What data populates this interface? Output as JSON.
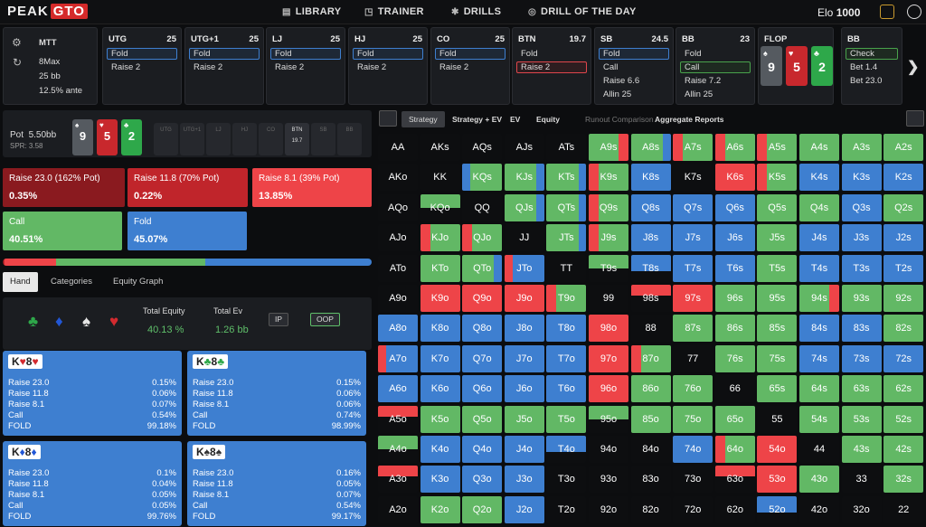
{
  "app": {
    "logo_a": "PEAK",
    "logo_b": "GTO"
  },
  "nav": {
    "items": [
      {
        "label": "LIBRARY",
        "icon": "library-icon"
      },
      {
        "label": "TRAINER",
        "icon": "gamepad-icon"
      },
      {
        "label": "DRILLS",
        "icon": "drills-icon"
      },
      {
        "label": "DRILL OF THE DAY",
        "icon": "target-icon"
      }
    ],
    "elo_label": "Elo",
    "elo_value": "1000"
  },
  "settings": {
    "game": "MTT",
    "max": "8Max",
    "bb": "25 bb",
    "ante": "12.5% ante"
  },
  "positions": [
    {
      "name": "UTG",
      "stack": "25",
      "actions": [
        {
          "label": "Fold",
          "sel": "blue"
        },
        {
          "label": "Raise 2",
          "sel": ""
        }
      ]
    },
    {
      "name": "UTG+1",
      "stack": "25",
      "actions": [
        {
          "label": "Fold",
          "sel": "blue"
        },
        {
          "label": "Raise 2",
          "sel": ""
        }
      ]
    },
    {
      "name": "LJ",
      "stack": "25",
      "actions": [
        {
          "label": "Fold",
          "sel": "blue"
        },
        {
          "label": "Raise 2",
          "sel": ""
        }
      ]
    },
    {
      "name": "HJ",
      "stack": "25",
      "actions": [
        {
          "label": "Fold",
          "sel": "blue"
        },
        {
          "label": "Raise 2",
          "sel": ""
        }
      ]
    },
    {
      "name": "CO",
      "stack": "25",
      "actions": [
        {
          "label": "Fold",
          "sel": "blue"
        },
        {
          "label": "Raise 2",
          "sel": ""
        }
      ]
    },
    {
      "name": "BTN",
      "stack": "19.7",
      "actions": [
        {
          "label": "Fold",
          "sel": ""
        },
        {
          "label": "Raise 2",
          "sel": "red"
        }
      ]
    },
    {
      "name": "SB",
      "stack": "24.5",
      "actions": [
        {
          "label": "Fold",
          "sel": "blue"
        },
        {
          "label": "Call",
          "sel": ""
        },
        {
          "label": "Raise 6.6",
          "sel": ""
        },
        {
          "label": "Allin 25",
          "sel": ""
        }
      ]
    },
    {
      "name": "BB",
      "stack": "23",
      "actions": [
        {
          "label": "Fold",
          "sel": ""
        },
        {
          "label": "Call",
          "sel": "green"
        },
        {
          "label": "Raise 7.2",
          "sel": ""
        },
        {
          "label": "Allin 25",
          "sel": ""
        }
      ]
    },
    {
      "name": "BB",
      "stack": "",
      "actions": [
        {
          "label": "Check",
          "sel": "green"
        },
        {
          "label": "Bet 1.4",
          "sel": ""
        },
        {
          "label": "Bet 23.0",
          "sel": ""
        }
      ]
    }
  ],
  "flop": {
    "label": "FLOP",
    "cards": [
      {
        "rank": "9",
        "suit": "♠",
        "color": "#555a60"
      },
      {
        "rank": "5",
        "suit": "♥",
        "color": "#c8282d"
      },
      {
        "rank": "2",
        "suit": "♣",
        "color": "#2ea84a"
      }
    ]
  },
  "pot": {
    "label": "Pot",
    "value": "5.50bb",
    "spr_label": "SPR:",
    "spr_value": "3.58",
    "seats": [
      {
        "name": "UTG",
        "stack": "",
        "active": false
      },
      {
        "name": "UTG+1",
        "stack": "",
        "active": false
      },
      {
        "name": "LJ",
        "stack": "",
        "active": false
      },
      {
        "name": "HJ",
        "stack": "",
        "active": false
      },
      {
        "name": "CO",
        "stack": "",
        "active": false
      },
      {
        "name": "BTN",
        "stack": "19.7",
        "active": true
      },
      {
        "name": "SB",
        "stack": "",
        "active": false
      },
      {
        "name": "BB",
        "stack": "",
        "active": false
      }
    ]
  },
  "actions": [
    {
      "label": "Raise 23.0 (162% Pot)",
      "freq": "0.35%",
      "color": "#8a1a1f"
    },
    {
      "label": "Raise 11.8 (70% Pot)",
      "freq": "0.22%",
      "color": "#c0252b"
    },
    {
      "label": "Raise 8.1 (39% Pot)",
      "freq": "13.85%",
      "color": "#ee4448"
    },
    {
      "label": "Call",
      "freq": "40.51%",
      "color": "#62b865"
    },
    {
      "label": "Fold",
      "freq": "45.07%",
      "color": "#3e7fd0"
    }
  ],
  "freq_values": [
    0.0035,
    0.0022,
    0.1385,
    0.4051,
    0.4507
  ],
  "hand_tabs": [
    "Hand",
    "Categories",
    "Equity Graph"
  ],
  "equity": {
    "suits": [
      {
        "symbol": "♣",
        "color": "#2ea84a"
      },
      {
        "symbol": "♦",
        "color": "#2257d6"
      },
      {
        "symbol": "♠",
        "color": "#e6e6e6"
      },
      {
        "symbol": "♥",
        "color": "#d32a2f"
      }
    ],
    "total_equity_label": "Total Equity",
    "total_equity": "40.13 %",
    "total_ev_label": "Total Ev",
    "total_ev": "1.26 bb",
    "ip": "IP",
    "oop": "OOP"
  },
  "combos": [
    {
      "r1": "K",
      "s1": "♥",
      "c1": "#d32a2f",
      "r2": "8",
      "s2": "♥",
      "c2": "#d32a2f",
      "rows": [
        {
          "k": "Raise 23.0",
          "v": "0.15%"
        },
        {
          "k": "Raise 11.8",
          "v": "0.06%"
        },
        {
          "k": "Raise 8.1",
          "v": "0.07%"
        },
        {
          "k": "Call",
          "v": "0.54%"
        },
        {
          "k": "FOLD",
          "v": "99.18%"
        }
      ]
    },
    {
      "r1": "K",
      "s1": "♣",
      "c1": "#2ea84a",
      "r2": "8",
      "s2": "♣",
      "c2": "#2ea84a",
      "rows": [
        {
          "k": "Raise 23.0",
          "v": "0.15%"
        },
        {
          "k": "Raise 11.8",
          "v": "0.06%"
        },
        {
          "k": "Raise 8.1",
          "v": "0.06%"
        },
        {
          "k": "Call",
          "v": "0.74%"
        },
        {
          "k": "FOLD",
          "v": "98.99%"
        }
      ]
    },
    {
      "r1": "K",
      "s1": "♦",
      "c1": "#2257d6",
      "r2": "8",
      "s2": "♦",
      "c2": "#2257d6",
      "rows": [
        {
          "k": "Raise 23.0",
          "v": "0.1%"
        },
        {
          "k": "Raise 11.8",
          "v": "0.04%"
        },
        {
          "k": "Raise 8.1",
          "v": "0.05%"
        },
        {
          "k": "Call",
          "v": "0.05%"
        },
        {
          "k": "FOLD",
          "v": "99.76%"
        }
      ]
    },
    {
      "r1": "K",
      "s1": "♠",
      "c1": "#333333",
      "r2": "8",
      "s2": "♠",
      "c2": "#333333",
      "rows": [
        {
          "k": "Raise 23.0",
          "v": "0.16%"
        },
        {
          "k": "Raise 11.8",
          "v": "0.05%"
        },
        {
          "k": "Raise 8.1",
          "v": "0.07%"
        },
        {
          "k": "Call",
          "v": "0.54%"
        },
        {
          "k": "FOLD",
          "v": "99.17%"
        }
      ]
    }
  ],
  "strategy_tabs": [
    {
      "label": "Strategy",
      "style": "active"
    },
    {
      "label": "Strategy + EV",
      "style": ""
    },
    {
      "label": "EV",
      "style": ""
    },
    {
      "label": "Equity",
      "style": ""
    },
    {
      "label": "Runout Comparison",
      "style": "dim"
    },
    {
      "label": "Aggregate Reports",
      "style": ""
    }
  ],
  "colors": {
    "raise_big": "#b0262c",
    "raise_small": "#ee4448",
    "call": "#62b865",
    "fold": "#3e7fd0",
    "empty": "#0d0e10"
  },
  "grid": [
    [
      "AA",
      "",
      "AKs",
      "",
      "AQs",
      "",
      "AJs",
      "",
      "ATs",
      "",
      "A9s",
      "GR",
      "A8s",
      "GB",
      "A7s",
      "RG",
      "A6s",
      "RG",
      "A5s",
      "RG",
      "A4s",
      "G",
      "A3s",
      "G",
      "A2s",
      "G"
    ],
    [
      "AKo",
      "",
      "KK",
      "",
      "KQs",
      "BG",
      "KJs",
      "GB",
      "KTs",
      "GB",
      "K9s",
      "RG",
      "K8s",
      "B",
      "K7s",
      "",
      "K6s",
      "R",
      "K5s",
      "RG",
      "K4s",
      "B",
      "K3s",
      "B",
      "K2s",
      "B"
    ],
    [
      "AQo",
      "",
      "KQo",
      "g",
      "QQ",
      "",
      "QJs",
      "GB",
      "QTs",
      "GB",
      "Q9s",
      "RG",
      "Q8s",
      "B",
      "Q7s",
      "B",
      "Q6s",
      "B",
      "Q5s",
      "G",
      "Q4s",
      "G",
      "Q3s",
      "B",
      "Q2s",
      "G"
    ],
    [
      "AJo",
      "",
      "KJo",
      "RG",
      "QJo",
      "RG",
      "JJ",
      "",
      "JTs",
      "GB",
      "J9s",
      "RG",
      "J8s",
      "B",
      "J7s",
      "B",
      "J6s",
      "B",
      "J5s",
      "G",
      "J4s",
      "B",
      "J3s",
      "B",
      "J2s",
      "B"
    ],
    [
      "ATo",
      "",
      "KTo",
      "G",
      "QTo",
      "GB",
      "JTo",
      "RB",
      "TT",
      "",
      "T9s",
      "g",
      "T8s",
      "b",
      "T7s",
      "B",
      "T6s",
      "B",
      "T5s",
      "G",
      "T4s",
      "B",
      "T3s",
      "B",
      "T2s",
      "B"
    ],
    [
      "A9o",
      "",
      "K9o",
      "R",
      "Q9o",
      "R",
      "J9o",
      "R",
      "T9o",
      "RG",
      "99",
      "",
      "98s",
      "r",
      "97s",
      "R",
      "96s",
      "G",
      "95s",
      "G",
      "94s",
      "GR",
      "93s",
      "G",
      "92s",
      "G"
    ],
    [
      "A8o",
      "B",
      "K8o",
      "B",
      "Q8o",
      "B",
      "J8o",
      "B",
      "T8o",
      "B",
      "98o",
      "R",
      "88",
      "",
      "87s",
      "G",
      "86s",
      "G",
      "85s",
      "G",
      "84s",
      "B",
      "83s",
      "B",
      "82s",
      "G"
    ],
    [
      "A7o",
      "RB",
      "K7o",
      "B",
      "Q7o",
      "B",
      "J7o",
      "B",
      "T7o",
      "B",
      "97o",
      "R",
      "87o",
      "RG",
      "77",
      "",
      "76s",
      "G",
      "75s",
      "G",
      "74s",
      "B",
      "73s",
      "B",
      "72s",
      "B"
    ],
    [
      "A6o",
      "B",
      "K6o",
      "B",
      "Q6o",
      "B",
      "J6o",
      "B",
      "T6o",
      "B",
      "96o",
      "R",
      "86o",
      "G",
      "76o",
      "G",
      "66",
      "",
      "65s",
      "G",
      "64s",
      "G",
      "63s",
      "G",
      "62s",
      "G"
    ],
    [
      "A5o",
      "r",
      "K5o",
      "G",
      "Q5o",
      "G",
      "J5o",
      "G",
      "T5o",
      "G",
      "95o",
      "g",
      "85o",
      "G",
      "75o",
      "G",
      "65o",
      "G",
      "55",
      "",
      "54s",
      "G",
      "53s",
      "G",
      "52s",
      "G"
    ],
    [
      "A4o",
      "g",
      "K4o",
      "B",
      "Q4o",
      "B",
      "J4o",
      "B",
      "T4o",
      "b",
      "94o",
      "",
      "84o",
      "",
      "74o",
      "B",
      "64o",
      "RG",
      "54o",
      "R",
      "44",
      "",
      "43s",
      "G",
      "42s",
      "G"
    ],
    [
      "A3o",
      "r",
      "K3o",
      "B",
      "Q3o",
      "B",
      "J3o",
      "B",
      "T3o",
      "",
      "93o",
      "",
      "83o",
      "",
      "73o",
      "",
      "63o",
      "r",
      "53o",
      "R",
      "43o",
      "G",
      "33",
      "",
      "32s",
      "G"
    ],
    [
      "A2o",
      "",
      "K2o",
      "G",
      "Q2o",
      "G",
      "J2o",
      "B",
      "T2o",
      "",
      "92o",
      "",
      "82o",
      "",
      "72o",
      "",
      "62o",
      "",
      "52o",
      "b",
      "42o",
      "",
      "32o",
      "",
      "22",
      ""
    ]
  ]
}
